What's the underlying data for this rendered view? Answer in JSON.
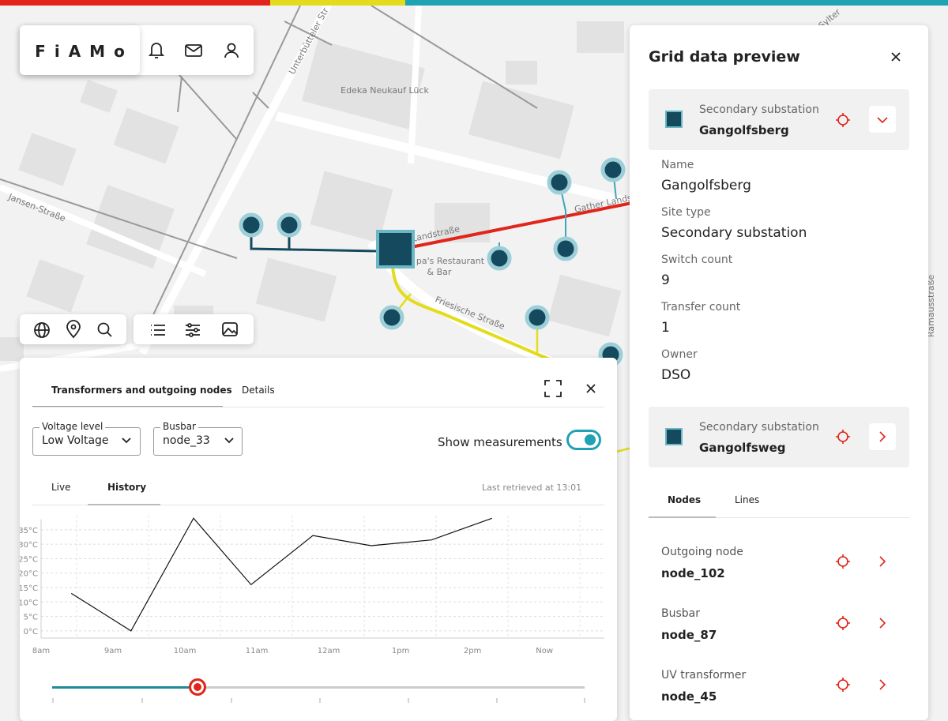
{
  "header": {
    "logo": "FiAMo"
  },
  "map": {
    "labels": [
      "Edeka Neukauf Lück",
      "pa's Restaurant",
      "& Bar",
      "Friesische Straße",
      "Gather Landstr",
      "Landstraße",
      "Jansen-Straße",
      "Unterbütteler Str",
      "Ramausstraße",
      "Sylter"
    ]
  },
  "bottom_panel": {
    "tabs": [
      "Transformers and outgoing nodes",
      "Details"
    ],
    "voltage_level": {
      "label": "Voltage level",
      "value": "Low Voltage"
    },
    "busbar": {
      "label": "Busbar",
      "value": "node_33"
    },
    "toggle_label": "Show measurements",
    "subtabs": [
      "Live",
      "History"
    ],
    "last_retrieved": "Last retrieved at 13:01"
  },
  "chart_data": {
    "type": "line",
    "x": [
      8.42,
      9.25,
      10.12,
      10.92,
      11.78,
      12.59,
      13.43,
      14.27
    ],
    "values": [
      13,
      0,
      39,
      16,
      33,
      29.5,
      31.5,
      39
    ],
    "color": "#111111",
    "xlim": [
      8,
      15.8
    ],
    "ylim": [
      -2.5,
      40
    ],
    "xticks": [
      {
        "value": 8,
        "label": "8am"
      },
      {
        "value": 9,
        "label": "9am"
      },
      {
        "value": 10,
        "label": "10am"
      },
      {
        "value": 11,
        "label": "11am"
      },
      {
        "value": 12,
        "label": "12am"
      },
      {
        "value": 13,
        "label": "1pm"
      },
      {
        "value": 14,
        "label": "2pm"
      },
      {
        "value": 15,
        "label": "Now"
      }
    ],
    "yticks": [
      {
        "value": 0,
        "label": "0°C"
      },
      {
        "value": 5,
        "label": "5°C"
      },
      {
        "value": 10,
        "label": "10°C"
      },
      {
        "value": 15,
        "label": "15°C"
      },
      {
        "value": 20,
        "label": "20°C"
      },
      {
        "value": 25,
        "label": "25°C"
      },
      {
        "value": 30,
        "label": "30°C"
      },
      {
        "value": 35,
        "label": "35°C"
      }
    ],
    "grid": true
  },
  "preview": {
    "title": "Grid data preview",
    "selected": {
      "type": "Secondary substation",
      "name": "Gangolfsberg"
    },
    "fields": [
      {
        "label": "Name",
        "value": "Gangolfsberg"
      },
      {
        "label": "Site type",
        "value": "Secondary substation"
      },
      {
        "label": "Switch count",
        "value": "9"
      },
      {
        "label": "Transfer count",
        "value": "1"
      },
      {
        "label": "Owner",
        "value": "DSO"
      }
    ],
    "next": {
      "type": "Secondary substation",
      "name": "Gangolfsweg"
    },
    "tabs": [
      "Nodes",
      "Lines"
    ],
    "items": [
      {
        "type": "Outgoing node",
        "name": "node_102"
      },
      {
        "type": "Busbar",
        "name": "node_87"
      },
      {
        "type": "UV transformer",
        "name": "node_45"
      }
    ]
  }
}
